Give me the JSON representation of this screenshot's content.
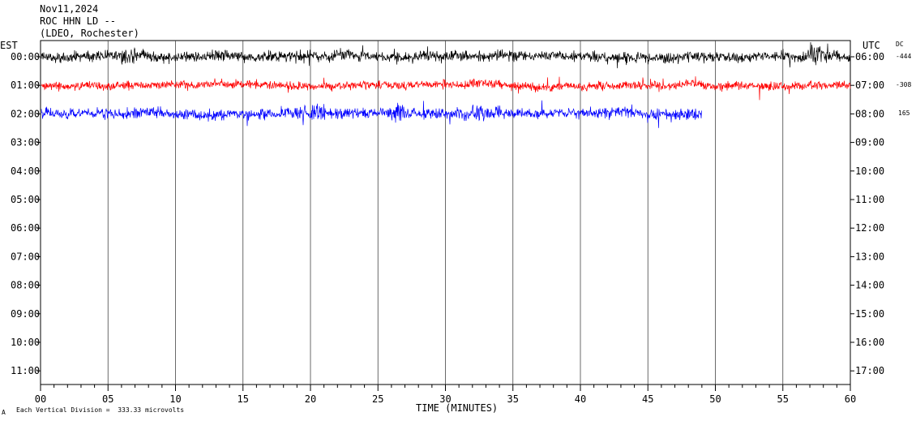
{
  "header": {
    "date": "Nov11,2024",
    "station": "ROC HHN LD --",
    "network": "(LDEO, Rochester)"
  },
  "left_axis_label": "EST",
  "right_axis_label": "UTC",
  "dc_label": "DC",
  "footer": {
    "division_note": "Each Vertical Division =  333.33 microvolts",
    "corner_mark": "A"
  },
  "colors": {
    "trace_1": "#000000",
    "trace_2": "#ff0000",
    "trace_3": "#0000ff",
    "grid": "#000000"
  },
  "chart_data": {
    "type": "line",
    "title": "",
    "xlabel": "TIME (MINUTES)",
    "ylabel": "",
    "xlim": [
      0,
      60
    ],
    "x_ticks": [
      "00",
      "05",
      "10",
      "15",
      "20",
      "25",
      "30",
      "35",
      "40",
      "45",
      "50",
      "55",
      "60"
    ],
    "est_ticks": [
      "00:00",
      "01:00",
      "02:00",
      "03:00",
      "04:00",
      "05:00",
      "06:00",
      "07:00",
      "08:00",
      "09:00",
      "10:00",
      "11:00"
    ],
    "utc_ticks": [
      "06:00",
      "07:00",
      "08:00",
      "09:00",
      "10:00",
      "11:00",
      "12:00",
      "13:00",
      "14:00",
      "15:00",
      "16:00",
      "17:00"
    ],
    "grid": true,
    "series": [
      {
        "row": 0,
        "color": "#000000",
        "dc_offset": "-444",
        "end_minute": 60
      },
      {
        "row": 1,
        "color": "#ff0000",
        "dc_offset": "-308",
        "end_minute": 60
      },
      {
        "row": 2,
        "color": "#0000ff",
        "dc_offset": "165",
        "end_minute": 49
      }
    ]
  }
}
